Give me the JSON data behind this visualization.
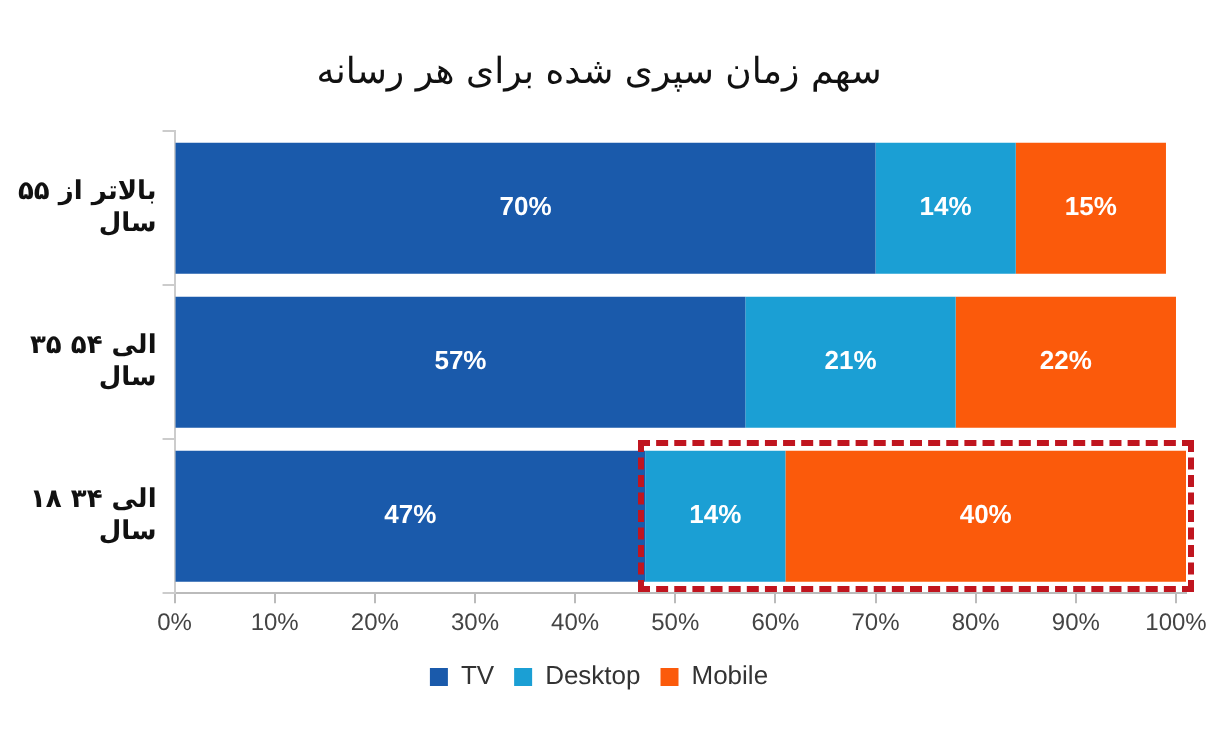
{
  "chart_data": {
    "type": "bar",
    "orientation": "horizontal",
    "stacked": true,
    "title": "سهم زمان سپری شده برای هر رسانه",
    "categories": [
      "بالاتر از ۵۵ سال",
      "۳۵ الی ۵۴ سال",
      "۱۸ الی ۳۴ سال"
    ],
    "series": [
      {
        "name": "TV",
        "color": "#1a5aab",
        "values": [
          70,
          57,
          47
        ],
        "value_labels": [
          "70%",
          "57%",
          "47%"
        ]
      },
      {
        "name": "Desktop",
        "color": "#1b9fd4",
        "values": [
          14,
          21,
          14
        ],
        "value_labels": [
          "14%",
          "21%",
          "14%"
        ]
      },
      {
        "name": "Mobile",
        "color": "#fb5a0b",
        "values": [
          15,
          22,
          40
        ],
        "value_labels": [
          "15%",
          "22%",
          "40%"
        ]
      }
    ],
    "xlim": [
      0,
      101
    ],
    "xticks": [
      {
        "value": 0,
        "label": "0%"
      },
      {
        "value": 10,
        "label": "10%"
      },
      {
        "value": 20,
        "label": "20%"
      },
      {
        "value": 30,
        "label": "30%"
      },
      {
        "value": 40,
        "label": "40%"
      },
      {
        "value": 50,
        "label": "50%"
      },
      {
        "value": 60,
        "label": "60%"
      },
      {
        "value": 70,
        "label": "70%"
      },
      {
        "value": 80,
        "label": "80%"
      },
      {
        "value": 90,
        "label": "90%"
      },
      {
        "value": 100,
        "label": "100%"
      }
    ],
    "grid": false,
    "legend": "bottom"
  }
}
